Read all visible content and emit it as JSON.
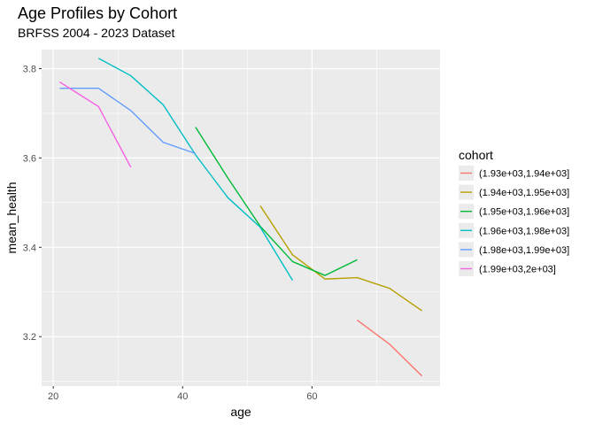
{
  "chart_data": {
    "type": "line",
    "title": "Age Profiles by Cohort",
    "subtitle": "BRFSS 2004 - 2023 Dataset",
    "xlabel": "age",
    "ylabel": "mean_health",
    "xlim": [
      18.2,
      79.8
    ],
    "ylim": [
      3.0894,
      3.8426
    ],
    "x_ticks": [
      20,
      40,
      60
    ],
    "y_ticks": [
      3.2,
      3.4,
      3.6,
      3.8
    ],
    "grid": true,
    "legend_title": "cohort",
    "legend_position": "right",
    "series": [
      {
        "name": "(1.93e+03,1.94e+03]",
        "color": "#F8766D",
        "x": [
          67,
          72,
          77
        ],
        "y": [
          3.237,
          3.183,
          3.112
        ]
      },
      {
        "name": "(1.94e+03,1.95e+03]",
        "color": "#B79F00",
        "x": [
          52,
          57,
          62,
          67,
          72,
          77
        ],
        "y": [
          3.493,
          3.383,
          3.329,
          3.332,
          3.308,
          3.258
        ]
      },
      {
        "name": "(1.95e+03,1.96e+03]",
        "color": "#00BA38",
        "x": [
          42,
          47,
          52,
          57,
          62,
          67
        ],
        "y": [
          3.669,
          3.555,
          3.447,
          3.368,
          3.337,
          3.372
        ]
      },
      {
        "name": "(1.96e+03,1.98e+03]",
        "color": "#00BFC4",
        "x": [
          27,
          32,
          37,
          42,
          47,
          52,
          57
        ],
        "y": [
          3.823,
          3.784,
          3.719,
          3.607,
          3.511,
          3.445,
          3.326
        ]
      },
      {
        "name": "(1.98e+03,1.99e+03]",
        "color": "#619CFF",
        "x": [
          21,
          27,
          32,
          37,
          42
        ],
        "y": [
          3.756,
          3.756,
          3.706,
          3.635,
          3.61
        ]
      },
      {
        "name": "(1.99e+03,2e+03]",
        "color": "#F564E3",
        "x": [
          21,
          27,
          32
        ],
        "y": [
          3.77,
          3.715,
          3.579
        ]
      }
    ]
  }
}
